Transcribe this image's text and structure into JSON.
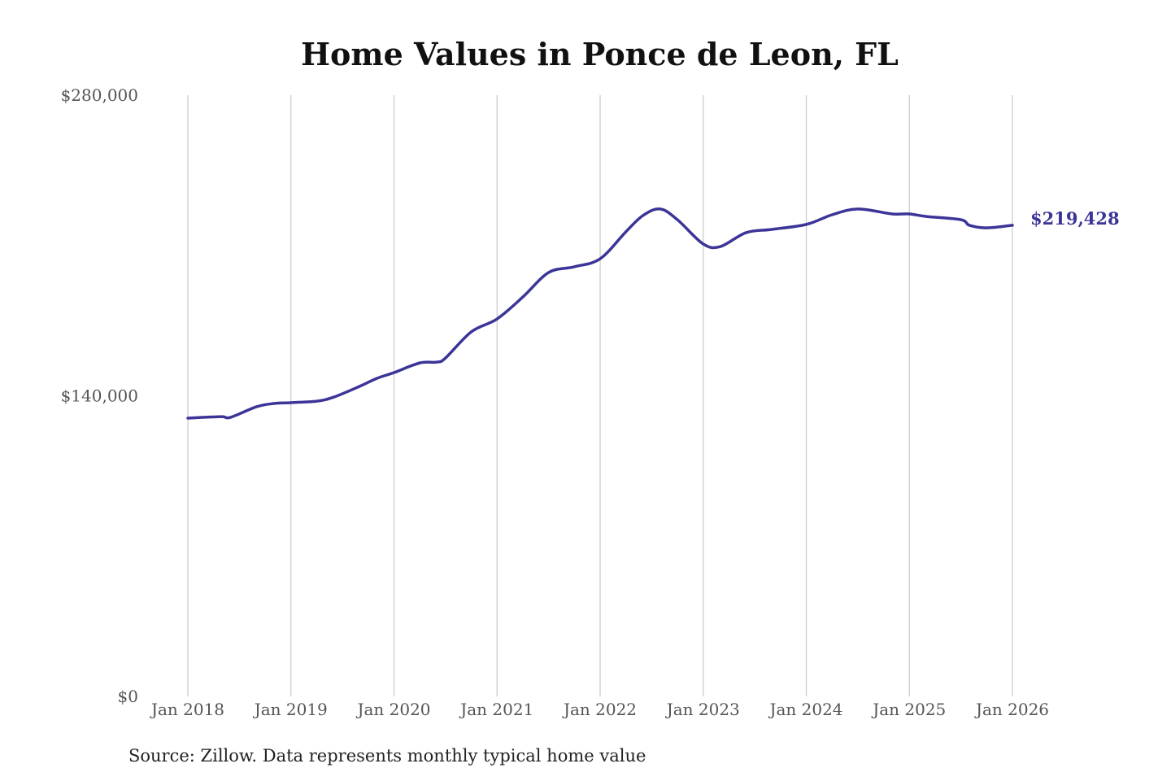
{
  "chart_data": {
    "type": "line",
    "title": "Home Values in Ponce de Leon, FL",
    "source": "Source: Zillow. Data represents monthly typical home value",
    "xlabel": "",
    "ylabel": "",
    "ylim": [
      0,
      280000
    ],
    "xlim": [
      "2018-01",
      "2026-01"
    ],
    "grid": "vertical",
    "y_ticks": [
      {
        "value": 0,
        "label": "$0"
      },
      {
        "value": 140000,
        "label": "$140,000"
      },
      {
        "value": 280000,
        "label": "$280,000"
      }
    ],
    "x_ticks": [
      {
        "value": "2018-01",
        "label": "Jan 2018"
      },
      {
        "value": "2019-01",
        "label": "Jan 2019"
      },
      {
        "value": "2020-01",
        "label": "Jan 2020"
      },
      {
        "value": "2021-01",
        "label": "Jan 2021"
      },
      {
        "value": "2022-01",
        "label": "Jan 2022"
      },
      {
        "value": "2023-01",
        "label": "Jan 2023"
      },
      {
        "value": "2024-01",
        "label": "Jan 2024"
      },
      {
        "value": "2025-01",
        "label": "Jan 2025"
      },
      {
        "value": "2026-01",
        "label": "Jan 2026"
      }
    ],
    "line_color": "#3b3597",
    "end_label": "$219,428",
    "series": [
      {
        "x": [
          "2018-01",
          "2018-03",
          "2018-05",
          "2018-06",
          "2018-09",
          "2018-11",
          "2019-01",
          "2019-04",
          "2019-06",
          "2019-09",
          "2019-11",
          "2020-01",
          "2020-04",
          "2020-06",
          "2020-07",
          "2020-10",
          "2021-01",
          "2021-04",
          "2021-07",
          "2021-10",
          "2022-01",
          "2022-04",
          "2022-06",
          "2022-08",
          "2022-10",
          "2023-01",
          "2023-03",
          "2023-06",
          "2023-09",
          "2024-01",
          "2024-04",
          "2024-07",
          "2024-11",
          "2025-01",
          "2025-03",
          "2025-07",
          "2025-08",
          "2025-10",
          "2026-01"
        ],
        "y": [
          129600,
          130000,
          130300,
          130000,
          134900,
          136400,
          136800,
          137500,
          139400,
          144400,
          148100,
          150800,
          155300,
          155700,
          157600,
          169800,
          175800,
          186000,
          197400,
          200100,
          203800,
          216400,
          224000,
          227000,
          222000,
          210700,
          209500,
          216000,
          217500,
          219800,
          224300,
          227000,
          224700,
          224700,
          223500,
          222000,
          219400,
          218200,
          219428
        ]
      }
    ]
  }
}
